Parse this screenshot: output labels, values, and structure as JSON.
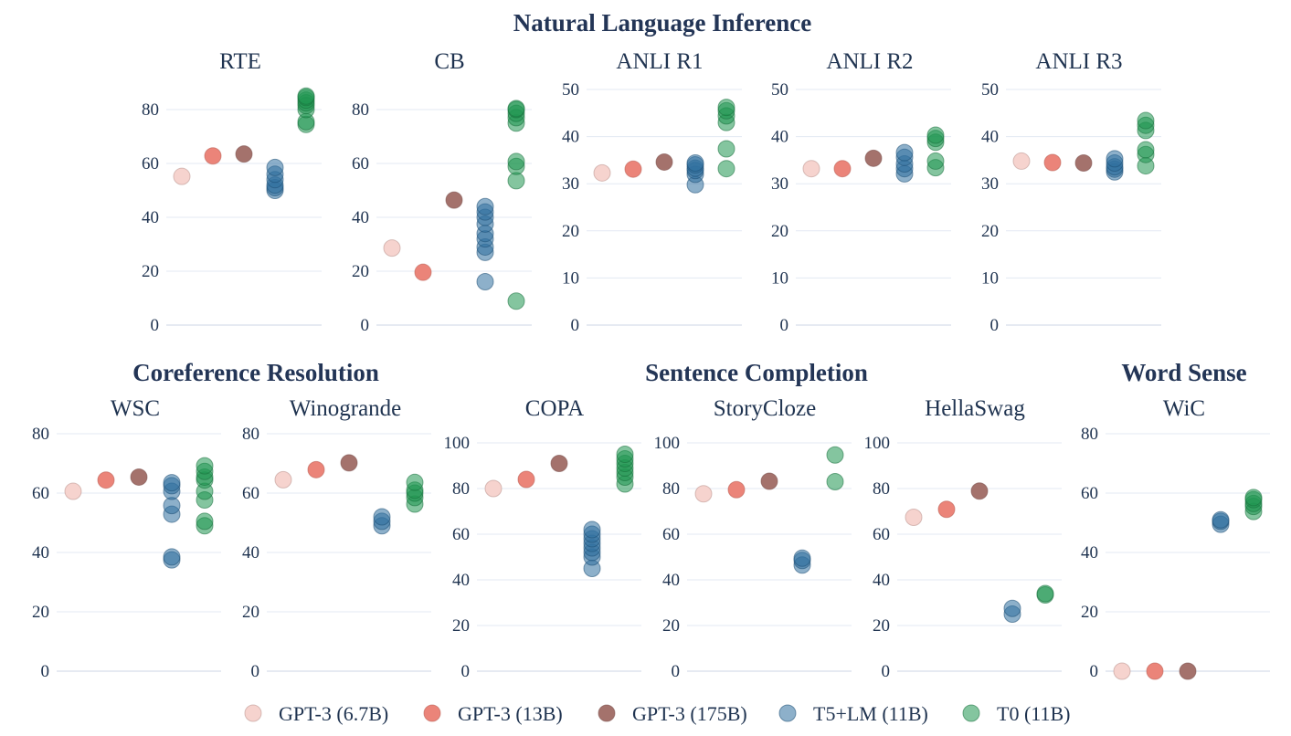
{
  "colors": {
    "GPT-3 (6.7B)": "#f6d3ce",
    "GPT-3 (13B)": "#eb8479",
    "GPT-3 (175B)": "#a4726c",
    "T5+LM (11B)": "#2f6f9e",
    "T0 (11B)": "#1f9550"
  },
  "legend": [
    "GPT-3 (6.7B)",
    "GPT-3 (13B)",
    "GPT-3 (175B)",
    "T5+LM (11B)",
    "T0 (11B)"
  ],
  "groups": [
    {
      "title": "Natural Language Inference"
    },
    {
      "title": "Coreference Resolution"
    },
    {
      "title": "Sentence Completion"
    },
    {
      "title": "Word Sense"
    }
  ],
  "chart_data": [
    {
      "type": "scatter",
      "title": "RTE",
      "yticks": [
        0,
        20,
        40,
        60,
        80
      ],
      "ylim": [
        0,
        88
      ],
      "series": [
        {
          "name": "GPT-3 (6.7B)",
          "values": [
            55.2
          ]
        },
        {
          "name": "GPT-3 (13B)",
          "values": [
            62.8
          ]
        },
        {
          "name": "GPT-3 (175B)",
          "values": [
            63.5
          ]
        },
        {
          "name": "T5+LM (11B)",
          "values": [
            50,
            51,
            52,
            54,
            56,
            58.5
          ]
        },
        {
          "name": "T0 (11B)",
          "values": [
            74.5,
            75.5,
            80,
            81.5,
            82.5,
            83.5,
            84.5,
            85
          ]
        }
      ]
    },
    {
      "type": "scatter",
      "title": "CB",
      "yticks": [
        0,
        20,
        40,
        60,
        80
      ],
      "ylim": [
        0,
        88
      ],
      "series": [
        {
          "name": "GPT-3 (6.7B)",
          "values": [
            28.6
          ]
        },
        {
          "name": "GPT-3 (13B)",
          "values": [
            19.6
          ]
        },
        {
          "name": "GPT-3 (175B)",
          "values": [
            46.4
          ]
        },
        {
          "name": "T5+LM (11B)",
          "values": [
            16.1,
            27,
            29,
            32,
            34,
            37.5,
            40,
            42,
            44
          ]
        },
        {
          "name": "T0 (11B)",
          "values": [
            8.9,
            53.6,
            58.9,
            60.7,
            75,
            77,
            78.6,
            80,
            80.4
          ]
        }
      ]
    },
    {
      "type": "scatter",
      "title": "ANLI R1",
      "yticks": [
        0,
        10,
        20,
        30,
        40,
        50
      ],
      "ylim": [
        0,
        51
      ],
      "series": [
        {
          "name": "GPT-3 (6.7B)",
          "values": [
            32.3
          ]
        },
        {
          "name": "GPT-3 (13B)",
          "values": [
            33.1
          ]
        },
        {
          "name": "GPT-3 (175B)",
          "values": [
            34.6
          ]
        },
        {
          "name": "T5+LM (11B)",
          "values": [
            29.8,
            32,
            32.8,
            33.3,
            34,
            34.4
          ]
        },
        {
          "name": "T0 (11B)",
          "values": [
            33.2,
            37.4,
            43,
            44.4,
            45.5,
            46.2
          ]
        }
      ]
    },
    {
      "type": "scatter",
      "title": "ANLI R2",
      "yticks": [
        0,
        10,
        20,
        30,
        40,
        50
      ],
      "ylim": [
        0,
        51
      ],
      "series": [
        {
          "name": "GPT-3 (6.7B)",
          "values": [
            33.2
          ]
        },
        {
          "name": "GPT-3 (13B)",
          "values": [
            33.2
          ]
        },
        {
          "name": "GPT-3 (175B)",
          "values": [
            35.4
          ]
        },
        {
          "name": "T5+LM (11B)",
          "values": [
            32.1,
            33.2,
            34.2,
            35.6,
            36.6
          ]
        },
        {
          "name": "T0 (11B)",
          "values": [
            33.4,
            34.8,
            38.8,
            39.6,
            40.3
          ]
        }
      ]
    },
    {
      "type": "scatter",
      "title": "ANLI R3",
      "yticks": [
        0,
        10,
        20,
        30,
        40,
        50
      ],
      "ylim": [
        0,
        51
      ],
      "series": [
        {
          "name": "GPT-3 (6.7B)",
          "values": [
            34.8
          ]
        },
        {
          "name": "GPT-3 (13B)",
          "values": [
            34.5
          ]
        },
        {
          "name": "GPT-3 (175B)",
          "values": [
            34.4
          ]
        },
        {
          "name": "T5+LM (11B)",
          "values": [
            32.5,
            33.1,
            33.6,
            34.4,
            35.3
          ]
        },
        {
          "name": "T0 (11B)",
          "values": [
            33.8,
            36.2,
            37.2,
            41.3,
            42.4,
            43.4
          ]
        }
      ]
    },
    {
      "type": "scatter",
      "title": "WSC",
      "yticks": [
        0,
        20,
        40,
        60,
        80
      ],
      "ylim": [
        0,
        84
      ],
      "series": [
        {
          "name": "GPT-3 (6.7B)",
          "values": [
            60.6
          ]
        },
        {
          "name": "GPT-3 (13B)",
          "values": [
            64.4
          ]
        },
        {
          "name": "GPT-3 (175B)",
          "values": [
            65.4
          ]
        },
        {
          "name": "T5+LM (11B)",
          "values": [
            37.5,
            38.5,
            52.9,
            55.8,
            60.6,
            62.5,
            63.5
          ]
        },
        {
          "name": "T0 (11B)",
          "values": [
            49,
            50.5,
            57.7,
            60.6,
            64.4,
            65.4,
            67.3,
            69.2
          ]
        }
      ]
    },
    {
      "type": "scatter",
      "title": "Winogrande",
      "yticks": [
        0,
        20,
        40,
        60,
        80
      ],
      "ylim": [
        0,
        84
      ],
      "series": [
        {
          "name": "GPT-3 (6.7B)",
          "values": [
            64.5
          ]
        },
        {
          "name": "GPT-3 (13B)",
          "values": [
            67.9
          ]
        },
        {
          "name": "GPT-3 (175B)",
          "values": [
            70.2
          ]
        },
        {
          "name": "T5+LM (11B)",
          "values": [
            49,
            50.5,
            52
          ]
        },
        {
          "name": "T0 (11B)",
          "values": [
            56.3,
            58.5,
            60,
            61,
            63.6
          ]
        }
      ]
    },
    {
      "type": "scatter",
      "title": "COPA",
      "yticks": [
        0,
        20,
        40,
        60,
        80,
        100
      ],
      "ylim": [
        0,
        104
      ],
      "series": [
        {
          "name": "GPT-3 (6.7B)",
          "values": [
            80
          ]
        },
        {
          "name": "GPT-3 (13B)",
          "values": [
            84
          ]
        },
        {
          "name": "GPT-3 (175B)",
          "values": [
            91
          ]
        },
        {
          "name": "T5+LM (11B)",
          "values": [
            45,
            50,
            52,
            54,
            56,
            58,
            60,
            62
          ]
        },
        {
          "name": "T0 (11B)",
          "values": [
            82,
            85,
            87,
            89,
            91,
            93,
            95
          ]
        }
      ]
    },
    {
      "type": "scatter",
      "title": "StoryCloze",
      "yticks": [
        0,
        20,
        40,
        60,
        80,
        100
      ],
      "ylim": [
        0,
        104
      ],
      "series": [
        {
          "name": "GPT-3 (6.7B)",
          "values": [
            77.7
          ]
        },
        {
          "name": "GPT-3 (13B)",
          "values": [
            79.5
          ]
        },
        {
          "name": "GPT-3 (175B)",
          "values": [
            83.2
          ]
        },
        {
          "name": "T5+LM (11B)",
          "values": [
            46.5,
            48.5,
            49.5
          ]
        },
        {
          "name": "T0 (11B)",
          "values": [
            83,
            94.7
          ]
        }
      ]
    },
    {
      "type": "scatter",
      "title": "HellaSwag",
      "yticks": [
        0,
        20,
        40,
        60,
        80,
        100
      ],
      "ylim": [
        0,
        104
      ],
      "series": [
        {
          "name": "GPT-3 (6.7B)",
          "values": [
            67.4
          ]
        },
        {
          "name": "GPT-3 (13B)",
          "values": [
            70.9
          ]
        },
        {
          "name": "GPT-3 (175B)",
          "values": [
            78.9
          ]
        },
        {
          "name": "T5+LM (11B)",
          "values": [
            25,
            27.5
          ]
        },
        {
          "name": "T0 (11B)",
          "values": [
            33.4,
            34
          ]
        }
      ]
    },
    {
      "type": "scatter",
      "title": "WiC",
      "yticks": [
        0,
        20,
        40,
        60,
        80
      ],
      "ylim": [
        0,
        84
      ],
      "series": [
        {
          "name": "GPT-3 (6.7B)",
          "values": [
            0
          ]
        },
        {
          "name": "GPT-3 (13B)",
          "values": [
            0
          ]
        },
        {
          "name": "GPT-3 (175B)",
          "values": [
            0
          ]
        },
        {
          "name": "T5+LM (11B)",
          "values": [
            49.5,
            50.5,
            51
          ]
        },
        {
          "name": "T0 (11B)",
          "values": [
            53.8,
            55.5,
            56.5,
            57.8,
            58.5
          ]
        }
      ]
    }
  ]
}
